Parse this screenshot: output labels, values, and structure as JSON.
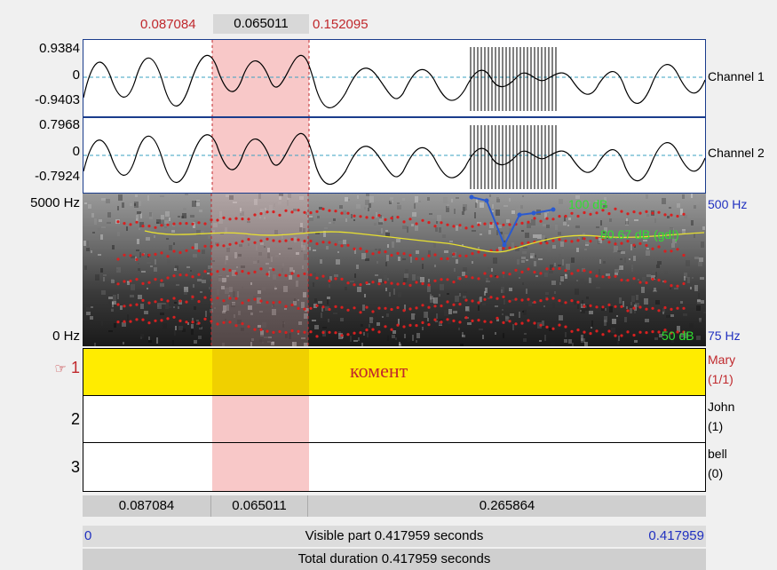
{
  "selection": {
    "start_time": "0.087084",
    "duration": "0.065011",
    "end_time": "0.152095"
  },
  "channel1": {
    "max": "0.9384",
    "zero": "0",
    "min": "-0.9403",
    "label": "Channel 1"
  },
  "channel2": {
    "max": "0.7968",
    "zero": "0",
    "min": "-0.7924",
    "label": "Channel 2"
  },
  "spectrogram": {
    "top_freq": "5000 Hz",
    "bottom_freq": "0 Hz",
    "db_top": "100 dB",
    "pitch_top": "500 Hz",
    "intensity_readout": "80.67 dB (gd!)",
    "db_bottom": "50 dB",
    "pitch_bottom": "75 Hz"
  },
  "tiers": [
    {
      "number": "1",
      "pointer": "☞",
      "name": "Mary",
      "count": "(1/1)",
      "text": "комент",
      "selected": true
    },
    {
      "number": "2",
      "pointer": "",
      "name": "John",
      "count": "(1)",
      "text": "",
      "selected": false
    },
    {
      "number": "3",
      "pointer": "",
      "name": "bell",
      "count": "(0)",
      "text": "",
      "selected": false
    }
  ],
  "segments": {
    "left": "0.087084",
    "selected": "0.065011",
    "right": "0.265864"
  },
  "visible": {
    "start": "0",
    "label": "Visible part 0.417959 seconds",
    "end": "0.417959"
  },
  "total": {
    "label": "Total duration 0.417959 seconds"
  },
  "colors": {
    "selection": "#f8c8c8",
    "tier_selected": "#ffec00",
    "accent_red": "#c0282c",
    "accent_blue": "#2030c0",
    "green": "#30e030",
    "yellow_curve": "#e8e030"
  }
}
